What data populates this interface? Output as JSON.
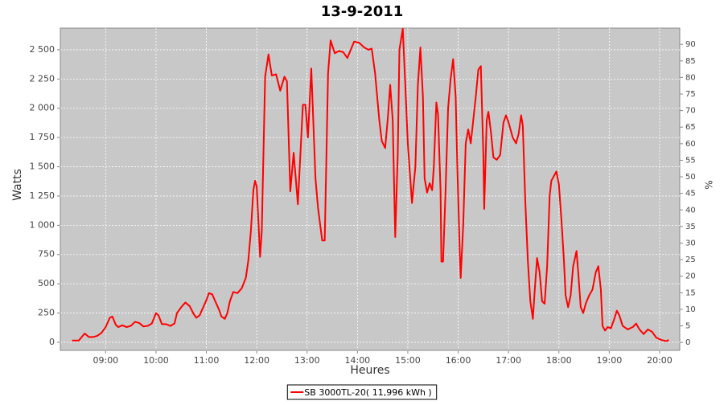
{
  "chart_data": {
    "type": "line",
    "title": "13-9-2011",
    "x_label": "Heures",
    "y_label": "Watts",
    "y2_label": "%",
    "x": [
      "08:20",
      "08:28",
      "08:35",
      "08:40",
      "08:45",
      "08:50",
      "08:55",
      "09:00",
      "09:05",
      "09:08",
      "09:12",
      "09:15",
      "09:20",
      "09:25",
      "09:30",
      "09:35",
      "09:40",
      "09:45",
      "09:50",
      "09:55",
      "10:00",
      "10:03",
      "10:07",
      "10:12",
      "10:17",
      "10:22",
      "10:25",
      "10:30",
      "10:35",
      "10:40",
      "10:45",
      "10:48",
      "10:52",
      "10:55",
      "11:00",
      "11:03",
      "11:07",
      "11:10",
      "11:15",
      "11:18",
      "11:22",
      "11:25",
      "11:28",
      "11:32",
      "11:37",
      "11:42",
      "11:47",
      "11:50",
      "11:53",
      "11:56",
      "11:58",
      "12:00",
      "12:04",
      "12:06",
      "12:10",
      "12:14",
      "12:18",
      "12:23",
      "12:28",
      "12:33",
      "12:36",
      "12:40",
      "12:44",
      "12:49",
      "12:55",
      "12:58",
      "13:01",
      "13:05",
      "13:10",
      "13:13",
      "13:18",
      "13:21",
      "13:25",
      "13:28",
      "13:33",
      "13:38",
      "13:43",
      "13:48",
      "13:56",
      "14:02",
      "14:08",
      "14:13",
      "14:17",
      "14:21",
      "14:26",
      "14:29",
      "14:33",
      "14:36",
      "14:39",
      "14:42",
      "14:45",
      "14:48",
      "14:50",
      "14:54",
      "14:57",
      "15:00",
      "15:05",
      "15:09",
      "15:12",
      "15:15",
      "15:18",
      "15:20",
      "15:23",
      "15:26",
      "15:29",
      "15:31",
      "15:34",
      "15:36",
      "15:39",
      "15:40",
      "15:42",
      "15:45",
      "15:48",
      "15:51",
      "15:54",
      "15:57",
      "15:59",
      "16:02",
      "16:03",
      "16:06",
      "16:09",
      "16:12",
      "16:15",
      "16:18",
      "16:21",
      "16:24",
      "16:27",
      "16:30",
      "16:31",
      "16:34",
      "16:36",
      "16:39",
      "16:42",
      "16:46",
      "16:50",
      "16:54",
      "16:57",
      "17:00",
      "17:05",
      "17:09",
      "17:12",
      "17:15",
      "17:17",
      "17:20",
      "17:23",
      "17:26",
      "17:29",
      "17:31",
      "17:34",
      "17:37",
      "17:40",
      "17:43",
      "17:46",
      "17:49",
      "17:51",
      "17:54",
      "17:57",
      "18:00",
      "18:03",
      "18:06",
      "18:08",
      "18:11",
      "18:14",
      "18:17",
      "18:21",
      "18:23",
      "18:26",
      "18:29",
      "18:32",
      "18:36",
      "18:40",
      "18:44",
      "18:47",
      "18:50",
      "18:52",
      "18:55",
      "18:58",
      "19:02",
      "19:06",
      "19:09",
      "19:12",
      "19:16",
      "19:22",
      "19:28",
      "19:32",
      "19:36",
      "19:41",
      "19:46",
      "19:51",
      "19:56",
      "20:02",
      "20:08",
      "20:11"
    ],
    "series": [
      {
        "name": "SB 3000TL-20( 11,996 kWh  )",
        "color": "#ff0000",
        "values": [
          15,
          15,
          75,
          45,
          45,
          55,
          80,
          130,
          210,
          220,
          150,
          130,
          145,
          130,
          140,
          175,
          165,
          135,
          140,
          160,
          250,
          230,
          155,
          155,
          140,
          160,
          250,
          300,
          340,
          310,
          240,
          210,
          230,
          280,
          360,
          420,
          410,
          360,
          280,
          220,
          200,
          250,
          350,
          430,
          420,
          460,
          550,
          700,
          950,
          1300,
          1380,
          1330,
          730,
          950,
          2270,
          2460,
          2280,
          2290,
          2150,
          2270,
          2230,
          1290,
          1620,
          1180,
          2030,
          2030,
          1750,
          2340,
          1400,
          1150,
          870,
          870,
          2300,
          2580,
          2470,
          2490,
          2480,
          2430,
          2570,
          2560,
          2520,
          2500,
          2510,
          2300,
          1900,
          1720,
          1660,
          1900,
          2200,
          1900,
          900,
          1600,
          2500,
          2680,
          2200,
          1700,
          1190,
          1500,
          2200,
          2520,
          2100,
          1400,
          1280,
          1360,
          1300,
          1500,
          2050,
          1950,
          1300,
          690,
          690,
          1300,
          2000,
          2250,
          2420,
          2100,
          1500,
          750,
          550,
          1000,
          1700,
          1820,
          1700,
          1900,
          2100,
          2330,
          2360,
          1600,
          1140,
          1900,
          1970,
          1800,
          1580,
          1560,
          1600,
          1880,
          1940,
          1880,
          1750,
          1700,
          1780,
          1940,
          1850,
          1200,
          700,
          350,
          200,
          420,
          720,
          600,
          350,
          330,
          650,
          1250,
          1380,
          1420,
          1460,
          1350,
          1050,
          700,
          400,
          300,
          400,
          650,
          780,
          600,
          300,
          250,
          330,
          400,
          450,
          600,
          650,
          450,
          140,
          100,
          130,
          120,
          200,
          270,
          230,
          140,
          110,
          130,
          160,
          110,
          70,
          110,
          90,
          40,
          20,
          10,
          20
        ]
      }
    ],
    "xlim": [
      "08:06",
      "20:24"
    ],
    "xticks": [
      "09:00",
      "10:00",
      "11:00",
      "12:00",
      "13:00",
      "14:00",
      "15:00",
      "16:00",
      "17:00",
      "18:00",
      "19:00",
      "20:00"
    ],
    "ylim": [
      -69,
      2685
    ],
    "yticks": [
      0,
      250,
      500,
      750,
      {
        "value": 1000,
        "label": "1 000"
      },
      {
        "value": 1250,
        "label": "1 250"
      },
      {
        "value": 1500,
        "label": "1 500"
      },
      {
        "value": 1750,
        "label": "1 750"
      },
      {
        "value": 2000,
        "label": "2 000"
      },
      {
        "value": 2250,
        "label": "2 250"
      },
      {
        "value": 2500,
        "label": "2 500"
      }
    ],
    "y2lim": [
      -2.4,
      94.9
    ],
    "y2ticks": [
      0,
      5,
      10,
      15,
      20,
      25,
      30,
      35,
      40,
      45,
      50,
      55,
      60,
      65,
      70,
      75,
      80,
      85,
      90
    ],
    "grid": true
  }
}
